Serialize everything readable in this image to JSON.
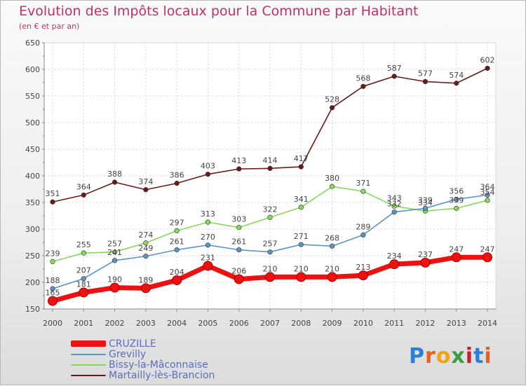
{
  "title": "Evolution des Impôts locaux pour la Commune par Habitant",
  "subtitle": "(en € et par an)",
  "logo": {
    "letters": [
      "P",
      "r",
      "o",
      "x",
      "i",
      "t",
      "i"
    ],
    "colors": [
      "#2e7fd4",
      "#e8601c",
      "#f2a30f",
      "#3a9e3a",
      "#c42030",
      "#2e7fd4",
      "#e8601c"
    ]
  },
  "chart_data": {
    "type": "line",
    "title": "Evolution des Impôts locaux pour la Commune par Habitant",
    "subtitle": "(en € et par an)",
    "xlabel": "",
    "ylabel": "",
    "x": [
      "2000",
      "2001",
      "2002",
      "2003",
      "2004",
      "2005",
      "2006",
      "2007",
      "2008",
      "2009",
      "2010",
      "2011",
      "2012",
      "2013",
      "2014"
    ],
    "ylim": [
      150,
      650
    ],
    "yticks": [
      150,
      200,
      250,
      300,
      350,
      400,
      450,
      500,
      550,
      600,
      650
    ],
    "grid": true,
    "legend_position": "bottom-left",
    "series": [
      {
        "name": "Martailly-lès-Brancion",
        "color": "#6b1a1a",
        "values": [
          351,
          364,
          388,
          374,
          386,
          403,
          413,
          414,
          417,
          528,
          568,
          587,
          577,
          574,
          602
        ]
      },
      {
        "name": "Bissy-la-Mâconnaise",
        "color": "#88d85a",
        "values": [
          239,
          255,
          257,
          274,
          297,
          313,
          303,
          322,
          341,
          380,
          371,
          343,
          334,
          339,
          354
        ]
      },
      {
        "name": "Grevilly",
        "color": "#5b94c8",
        "values": [
          188,
          207,
          241,
          249,
          261,
          270,
          261,
          257,
          271,
          268,
          289,
          332,
          339,
          356,
          364
        ]
      },
      {
        "name": "CRUZILLE",
        "color": "#ee1111",
        "values": [
          165,
          181,
          190,
          189,
          204,
          231,
          206,
          210,
          210,
          210,
          213,
          234,
          237,
          247,
          247
        ]
      }
    ],
    "legend_order": [
      "CRUZILLE",
      "Grevilly",
      "Bissy-la-Mâconnaise",
      "Martailly-lès-Brancion"
    ]
  }
}
